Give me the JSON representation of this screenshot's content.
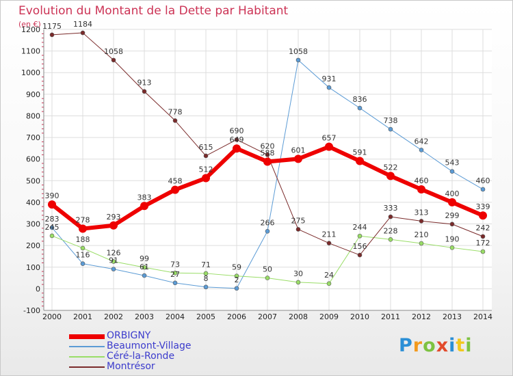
{
  "chart_data": {
    "type": "line",
    "title": "Evolution du Montant de la Dette par Habitant",
    "unit_label": "(en €)",
    "x": [
      2000,
      2001,
      2002,
      2003,
      2004,
      2005,
      2006,
      2007,
      2008,
      2009,
      2010,
      2011,
      2012,
      2013,
      2014
    ],
    "ylim": [
      -100,
      1200
    ],
    "yticks": [
      -100,
      0,
      100,
      200,
      300,
      400,
      500,
      600,
      700,
      800,
      900,
      1000,
      1100,
      1200
    ],
    "grid": true,
    "legend_position": "bottom-left",
    "series": [
      {
        "name": "ORBIGNY",
        "color": "#ee0000",
        "emphasis": true,
        "values": [
          390,
          278,
          293,
          383,
          458,
          512,
          649,
          588,
          601,
          657,
          591,
          522,
          460,
          400,
          339
        ]
      },
      {
        "name": "Beaumont-Village",
        "color": "#5b9bd5",
        "values": [
          283,
          116,
          91,
          61,
          27,
          8,
          2,
          266,
          1058,
          931,
          836,
          738,
          642,
          543,
          460
        ]
      },
      {
        "name": "Céré-la-Ronde",
        "color": "#99dd66",
        "values": [
          245,
          188,
          126,
          99,
          73,
          71,
          59,
          50,
          30,
          24,
          244,
          228,
          210,
          190,
          172
        ]
      },
      {
        "name": "Montrésor",
        "color": "#7a2a2a",
        "values": [
          1175,
          1184,
          1058,
          913,
          778,
          615,
          690,
          620,
          275,
          211,
          156,
          333,
          313,
          299,
          242
        ]
      }
    ]
  },
  "logo": {
    "letters": [
      "P",
      "r",
      "o",
      "x",
      "i",
      "t",
      "i"
    ],
    "colors": [
      "#2b8fd6",
      "#f39a1e",
      "#7dc242",
      "#e24a2b",
      "#2b8fd6",
      "#f2c81e",
      "#7dc242"
    ]
  }
}
